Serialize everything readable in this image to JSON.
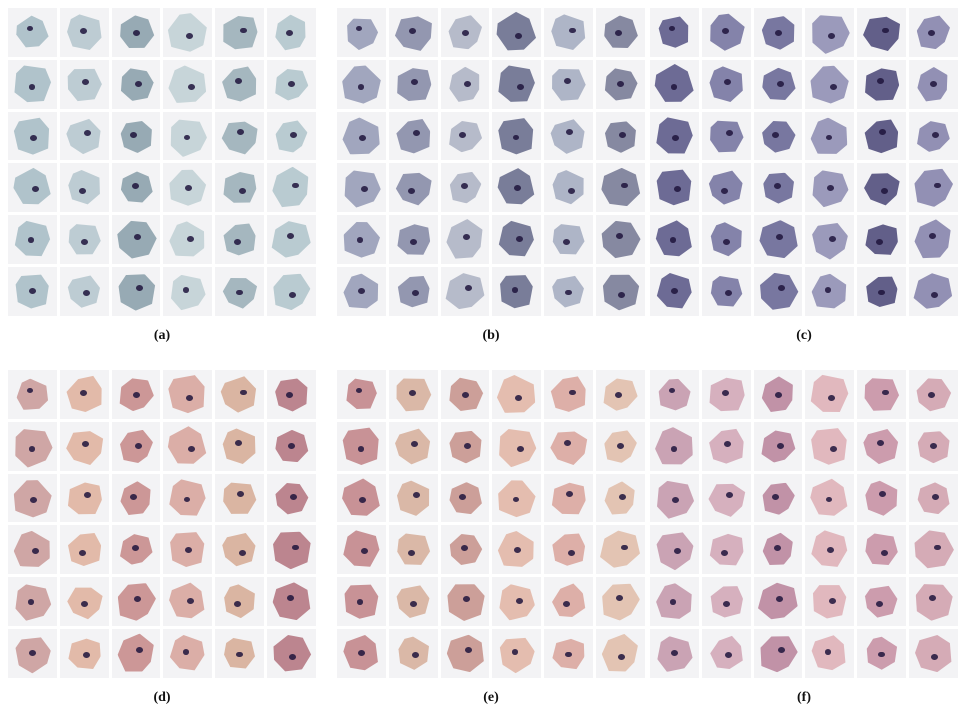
{
  "figure": {
    "panels": [
      {
        "caption": "(a)",
        "colors": [
          "#aabfc7",
          "#b4c8cd",
          "#9eb2ba",
          "#c3d2d6",
          "#8fa4ae",
          "#b9c9cf"
        ]
      },
      {
        "caption": "(b)",
        "colors": [
          "#8b8fa9",
          "#9aa0b8",
          "#7d8099",
          "#a8b0c2",
          "#6f7390",
          "#b1b6c6"
        ]
      },
      {
        "caption": "(c)",
        "colors": [
          "#6e6c98",
          "#7b79a3",
          "#625f8c",
          "#8a88ae",
          "#56527f",
          "#9493b5"
        ]
      },
      {
        "caption": "(d)",
        "colors": [
          "#d9a8a0",
          "#c98f8e",
          "#e1b5a2",
          "#cc9f9d",
          "#b77c85",
          "#d8b09a"
        ]
      },
      {
        "caption": "(e)",
        "colors": [
          "#dba9a1",
          "#e3b8a8",
          "#c99890",
          "#d8b39f",
          "#c48a8d",
          "#e2c0ad"
        ]
      },
      {
        "caption": "(f)",
        "colors": [
          "#d3a5b0",
          "#c995a6",
          "#dfb3b8",
          "#bd8aa0",
          "#d4aab8",
          "#c79cae"
        ]
      }
    ]
  }
}
